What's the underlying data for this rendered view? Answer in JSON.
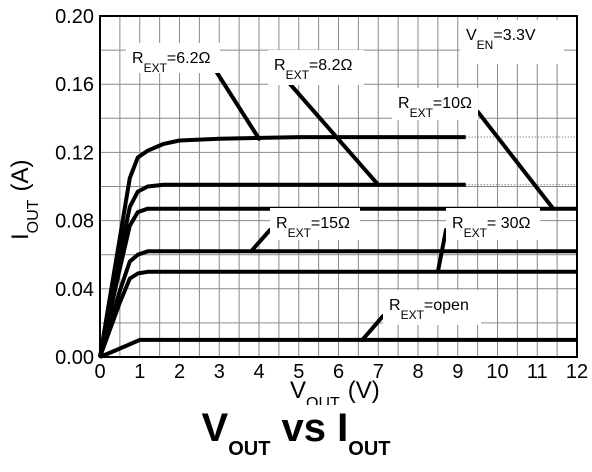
{
  "chart_data": {
    "type": "line",
    "title_parts": [
      "V",
      "OUT",
      "vs I",
      "OUT"
    ],
    "xlabel_main": "V",
    "xlabel_sub": "OUT",
    "xlabel_unit": "(V)",
    "ylabel_main": "I",
    "ylabel_sub": "OUT",
    "ylabel_unit": "(A)",
    "xlim": [
      0,
      12
    ],
    "ylim": [
      0,
      0.2
    ],
    "x_ticks": [
      0,
      1,
      2,
      3,
      4,
      5,
      6,
      7,
      8,
      9,
      10,
      11,
      12
    ],
    "x_tick_labels": [
      "0",
      "1",
      "2",
      "3",
      "4",
      "5",
      "6",
      "7",
      "8",
      "9",
      "10",
      "11",
      "12"
    ],
    "y_ticks": [
      0.0,
      0.04,
      0.08,
      0.12,
      0.16,
      0.2
    ],
    "y_tick_labels": [
      "0.00",
      "0.04",
      "0.08",
      "0.12",
      "0.16",
      "0.20"
    ],
    "grid": true,
    "condition": {
      "main": "V",
      "sub": "EN",
      "value": "=3.3V"
    },
    "series": [
      {
        "name": "R_EXT=6.2Ω",
        "label_main": "R",
        "label_sub": "EXT",
        "label_value": "=6.2Ω",
        "x": [
          0,
          0.25,
          0.5,
          0.75,
          0.95,
          1.2,
          1.6,
          2.0,
          3.0,
          5.0,
          7.0,
          9.2
        ],
        "y": [
          0,
          0.035,
          0.07,
          0.105,
          0.117,
          0.121,
          0.125,
          0.127,
          0.128,
          0.129,
          0.129,
          0.129
        ]
      },
      {
        "name": "R_EXT=8.2Ω",
        "label_main": "R",
        "label_sub": "EXT",
        "label_value": "=8.2Ω",
        "x": [
          0,
          0.25,
          0.5,
          0.75,
          0.95,
          1.2,
          1.6,
          2.0,
          4.0,
          7.0,
          9.2
        ],
        "y": [
          0,
          0.03,
          0.06,
          0.088,
          0.097,
          0.1,
          0.101,
          0.101,
          0.101,
          0.101,
          0.101
        ]
      },
      {
        "name": "R_EXT=10Ω",
        "label_main": "R",
        "label_sub": "EXT",
        "label_value": "=10Ω",
        "x": [
          0,
          0.25,
          0.5,
          0.75,
          0.95,
          1.2,
          1.6,
          2.0,
          5.0,
          8.0,
          12.0
        ],
        "y": [
          0,
          0.026,
          0.052,
          0.077,
          0.085,
          0.087,
          0.087,
          0.087,
          0.087,
          0.087,
          0.087
        ]
      },
      {
        "name": "R_EXT=15Ω",
        "label_main": "R",
        "label_sub": "EXT",
        "label_value": "=15Ω",
        "x": [
          0,
          0.25,
          0.5,
          0.75,
          0.95,
          1.2,
          1.6,
          2.0,
          6.0,
          12.0
        ],
        "y": [
          0,
          0.019,
          0.039,
          0.056,
          0.06,
          0.062,
          0.062,
          0.062,
          0.062,
          0.062
        ]
      },
      {
        "name": "R_EXT=30Ω",
        "label_main": "R",
        "label_sub": "EXT",
        "label_value": "= 30Ω",
        "x": [
          0,
          0.25,
          0.5,
          0.75,
          0.95,
          1.2,
          1.6,
          2.0,
          6.0,
          12.0
        ],
        "y": [
          0,
          0.016,
          0.032,
          0.046,
          0.049,
          0.05,
          0.05,
          0.05,
          0.05,
          0.05
        ]
      },
      {
        "name": "R_EXT=open",
        "label_main": "R",
        "label_sub": "EXT",
        "label_value": "=open",
        "x": [
          0,
          0.5,
          0.8,
          1.0,
          1.2,
          3.0,
          6.0,
          12.0
        ],
        "y": [
          0,
          0.005,
          0.008,
          0.01,
          0.01,
          0.01,
          0.01,
          0.01
        ]
      }
    ]
  }
}
